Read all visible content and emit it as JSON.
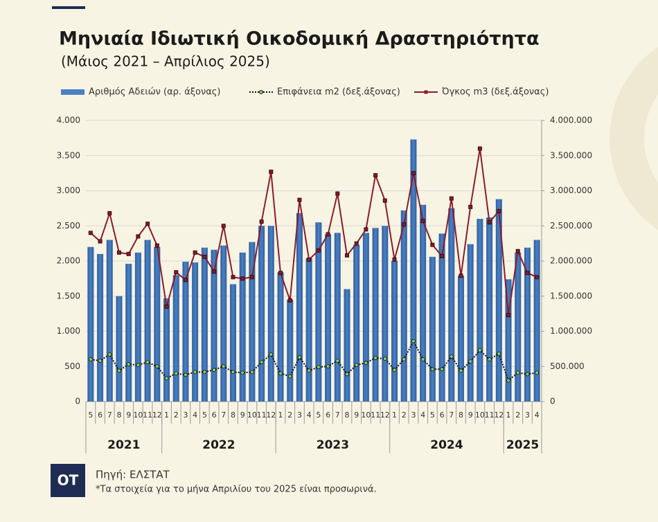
{
  "chart_data": {
    "type": "combo",
    "title": "Μηνιαία Ιδιωτική Οικοδομική Δραστηριότητα",
    "subtitle": "(Μάιος 2021 – Απρίλιος 2025)",
    "categories": [
      "5",
      "6",
      "7",
      "8",
      "9",
      "10",
      "11",
      "12",
      "1",
      "2",
      "3",
      "4",
      "5",
      "6",
      "7",
      "8",
      "9",
      "10",
      "11",
      "12",
      "1",
      "2",
      "3",
      "4",
      "5",
      "6",
      "7",
      "8",
      "9",
      "10",
      "11",
      "12",
      "1",
      "2",
      "3",
      "4",
      "5",
      "6",
      "7",
      "8",
      "9",
      "10",
      "11",
      "12",
      "1",
      "2",
      "3",
      "4"
    ],
    "years": [
      "2021",
      "2022",
      "2023",
      "2024",
      "2025"
    ],
    "series": [
      {
        "name": "Αριθμός Αδειών (αρ. άξονας)",
        "kind": "bar",
        "color": "#4a80c4",
        "values": [
          2200,
          2100,
          2300,
          1500,
          1960,
          2120,
          2300,
          2200,
          1470,
          1800,
          1990,
          1980,
          2190,
          2160,
          2220,
          1670,
          2120,
          2270,
          2500,
          2500,
          1840,
          1450,
          2680,
          2040,
          2550,
          2380,
          2400,
          1600,
          2230,
          2400,
          2470,
          2500,
          2000,
          2720,
          3730,
          2800,
          2060,
          2390,
          2750,
          1790,
          2240,
          2600,
          2620,
          2880,
          1740,
          2120,
          2190,
          2300
        ]
      },
      {
        "name": "Επιφάνεια m2 (δεξ.άξονας)",
        "kind": "dotted",
        "axis": "y2",
        "color": "#8fcf5a",
        "values": [
          600000,
          580000,
          670000,
          440000,
          530000,
          520000,
          560000,
          500000,
          330000,
          400000,
          380000,
          420000,
          420000,
          450000,
          500000,
          420000,
          410000,
          420000,
          560000,
          670000,
          400000,
          360000,
          630000,
          440000,
          490000,
          500000,
          580000,
          390000,
          520000,
          550000,
          620000,
          610000,
          450000,
          600000,
          860000,
          600000,
          460000,
          460000,
          640000,
          440000,
          570000,
          730000,
          600000,
          680000,
          300000,
          410000,
          390000,
          410000
        ]
      },
      {
        "name": "Όγκος m3 (δεξ.άξονας)",
        "kind": "line",
        "axis": "y2",
        "color": "#8b1a2b",
        "values": [
          2400000,
          2280000,
          2680000,
          2120000,
          2100000,
          2350000,
          2530000,
          2220000,
          1350000,
          1840000,
          1730000,
          2120000,
          2060000,
          1850000,
          2500000,
          1770000,
          1750000,
          1770000,
          2560000,
          3270000,
          1830000,
          1440000,
          2870000,
          2020000,
          2150000,
          2380000,
          2960000,
          2080000,
          2250000,
          2450000,
          3220000,
          2860000,
          2020000,
          2520000,
          3250000,
          2570000,
          2230000,
          2070000,
          2890000,
          1790000,
          2770000,
          3600000,
          2550000,
          2710000,
          1230000,
          2140000,
          1830000,
          1770000
        ]
      }
    ],
    "ylim": [
      0,
      4000
    ],
    "yticks": [
      0,
      500,
      {
        "value": 1000,
        "label": "1.000"
      },
      {
        "value": 1500,
        "label": "1.500"
      },
      {
        "value": 2000,
        "label": "2.000"
      },
      {
        "value": 2500,
        "label": "2.500"
      },
      {
        "value": 3000,
        "label": "3.000"
      },
      {
        "value": 3500,
        "label": "3.500"
      },
      {
        "value": 4000,
        "label": "4.000"
      }
    ],
    "y2lim": [
      0,
      4000000
    ],
    "y2ticks": [
      0,
      {
        "value": 500000,
        "label": "500.000"
      },
      {
        "value": 1000000,
        "label": "1.000.000"
      },
      {
        "value": 1500000,
        "label": "1.500.000"
      },
      {
        "value": 2000000,
        "label": "2.000.000"
      },
      {
        "value": 2500000,
        "label": "2.500.000"
      },
      {
        "value": 3000000,
        "label": "3.000.000"
      },
      {
        "value": 3500000,
        "label": "3.500.000"
      },
      {
        "value": 4000000,
        "label": "4.000.000"
      }
    ],
    "grid": true,
    "source": "Πηγή: ΕΛΣΤΑΤ",
    "note": "*Τα στοιχεία για το μήνα Απριλίου του 2025 είναι προσωρινά.",
    "logo": "ΟΤ"
  }
}
